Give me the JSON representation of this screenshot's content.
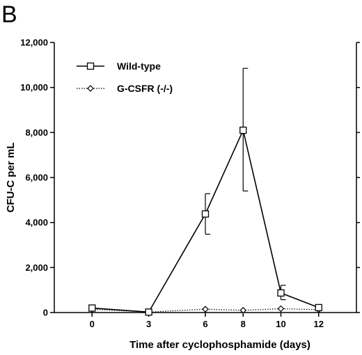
{
  "panel_label": "B",
  "chart_data": {
    "type": "line",
    "title": "",
    "xlabel": "Time after cyclophosphamide (days)",
    "ylabel": "CFU-C per mL",
    "xlim": [
      -2,
      14
    ],
    "ylim": [
      0,
      12000
    ],
    "x_ticks": [
      0,
      3,
      6,
      8,
      10,
      12
    ],
    "y_ticks": [
      0,
      2000,
      4000,
      6000,
      8000,
      10000,
      12000
    ],
    "y_tick_labels": [
      "0",
      "2,000",
      "4,000",
      "6,000",
      "8,000",
      "10,000",
      "12,000"
    ],
    "grid": false,
    "legend_position": "top-left",
    "series": [
      {
        "name": "Wild-type",
        "marker": "square",
        "line_style": "solid",
        "x": [
          0,
          3,
          6,
          8,
          10,
          12
        ],
        "y": [
          200,
          20,
          4380,
          8100,
          870,
          220
        ],
        "error_upper": [
          0,
          0,
          900,
          2750,
          340,
          0
        ],
        "error_lower": [
          0,
          0,
          900,
          2700,
          300,
          0
        ]
      },
      {
        "name": "G-CSFR (-/-)",
        "marker": "diamond",
        "line_style": "dotted",
        "x": [
          0,
          3,
          6,
          8,
          10,
          12
        ],
        "y": [
          150,
          20,
          150,
          100,
          170,
          130
        ],
        "error_upper": [
          0,
          0,
          0,
          0,
          0,
          0
        ],
        "error_lower": [
          0,
          0,
          0,
          0,
          0,
          0
        ]
      }
    ]
  }
}
